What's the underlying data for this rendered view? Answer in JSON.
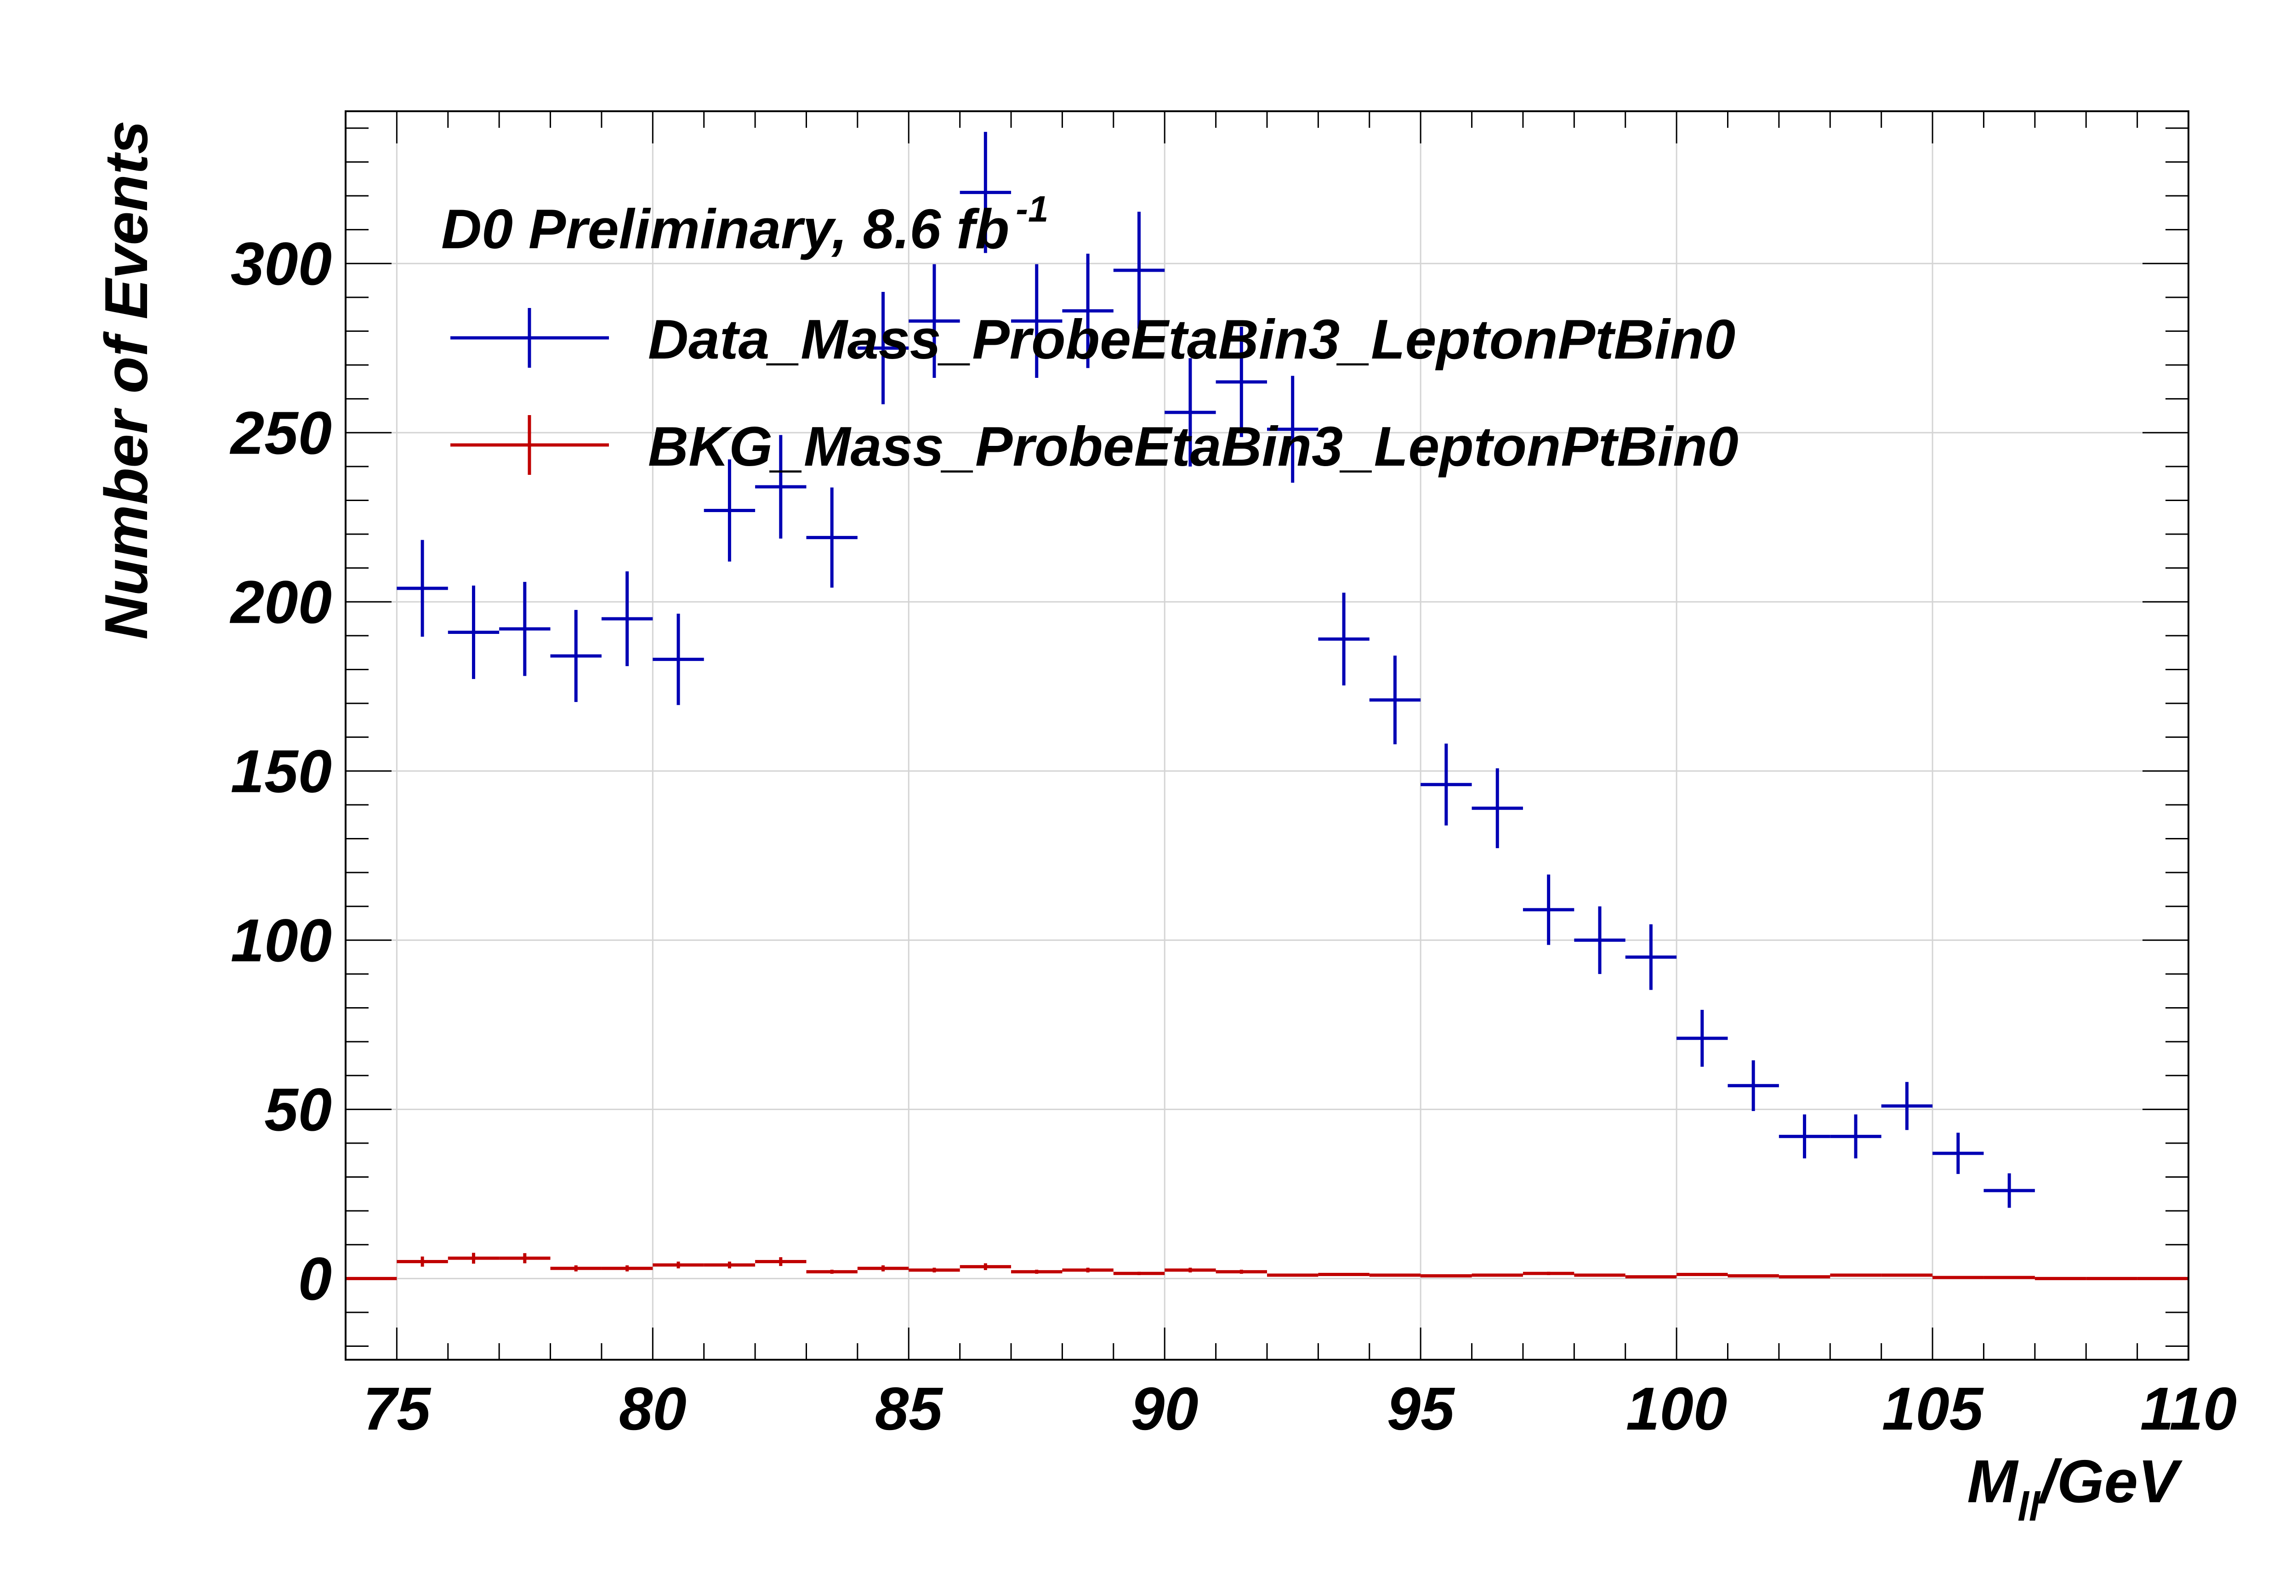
{
  "chart_data": {
    "type": "scatter",
    "annotation": {
      "text": "D0 Preliminary, 8.6 fb",
      "superscript": "-1"
    },
    "xlabel": {
      "main": "M",
      "subscript": "ll",
      "suffix": "/GeV"
    },
    "ylabel": "Number of Events",
    "xlim": [
      74,
      110
    ],
    "ylim": [
      -24,
      345
    ],
    "x_ticks": [
      75,
      80,
      85,
      90,
      95,
      100,
      105,
      110
    ],
    "y_ticks": [
      0,
      50,
      100,
      150,
      200,
      250,
      300
    ],
    "x_tick_labels": [
      "75",
      "80",
      "85",
      "90",
      "95",
      "100",
      "105",
      "110"
    ],
    "y_tick_labels": [
      "0",
      "50",
      "100",
      "150",
      "200",
      "250",
      "300"
    ],
    "grid": true,
    "bin_width": 1,
    "legend_position": "top-left",
    "series": [
      {
        "name": "Data_Mass_ProbeEtaBin3_LeptonPtBin0",
        "color": "#0000b4",
        "x": [
          75.5,
          76.5,
          77.5,
          78.5,
          79.5,
          80.5,
          81.5,
          82.5,
          83.5,
          84.5,
          85.5,
          86.5,
          87.5,
          88.5,
          89.5,
          90.5,
          91.5,
          92.5,
          93.5,
          94.5,
          95.5,
          96.5,
          97.5,
          98.5,
          99.5,
          100.5,
          101.5,
          102.5,
          103.5,
          104.5,
          105.5,
          106.5
        ],
        "y": [
          204,
          191,
          192,
          184,
          195,
          183,
          227,
          234,
          219,
          275,
          283,
          321,
          283,
          286,
          298,
          256,
          265,
          251,
          189,
          171,
          146,
          139,
          109,
          100,
          95,
          71,
          57,
          42,
          42,
          51,
          37,
          26
        ],
        "yerr": [
          14.3,
          13.8,
          13.9,
          13.6,
          14.0,
          13.5,
          15.1,
          15.3,
          14.8,
          16.6,
          16.8,
          17.9,
          16.8,
          16.9,
          17.3,
          16.0,
          16.3,
          15.8,
          13.7,
          13.1,
          12.1,
          11.8,
          10.4,
          10.0,
          9.7,
          8.4,
          7.5,
          6.5,
          6.5,
          7.1,
          6.1,
          5.1
        ]
      },
      {
        "name": "BKG_Mass_ProbeEtaBin3_LeptonPtBin0",
        "color": "#c00000",
        "x": [
          74.5,
          75.5,
          76.5,
          77.5,
          78.5,
          79.5,
          80.5,
          81.5,
          82.5,
          83.5,
          84.5,
          85.5,
          86.5,
          87.5,
          88.5,
          89.5,
          90.5,
          91.5,
          92.5,
          93.5,
          94.5,
          95.5,
          96.5,
          97.5,
          98.5,
          99.5,
          100.5,
          101.5,
          102.5,
          103.5,
          104.5,
          105.5,
          106.5,
          107.5,
          108.5,
          109.5
        ],
        "y": [
          0,
          5,
          6,
          6,
          3,
          3,
          4,
          4,
          5,
          2,
          3,
          2.5,
          3.5,
          2,
          2.5,
          1.5,
          2.5,
          2,
          1,
          1.2,
          1,
          0.8,
          1,
          1.5,
          1,
          0.5,
          1.2,
          0.8,
          0.5,
          1,
          1,
          0.3,
          0.3,
          0,
          0,
          0
        ],
        "yerr": [
          0,
          1.5,
          1.6,
          1.5,
          0.9,
          0.9,
          1.0,
          1.0,
          1.3,
          0.6,
          0.9,
          0.7,
          1.0,
          0.6,
          0.7,
          0.5,
          0.7,
          0.6,
          0.3,
          0.4,
          0.3,
          0.3,
          0.3,
          0.5,
          0.3,
          0.2,
          0.4,
          0.3,
          0.2,
          0.3,
          0.3,
          0.1,
          0.1,
          0,
          0,
          0
        ]
      }
    ]
  }
}
